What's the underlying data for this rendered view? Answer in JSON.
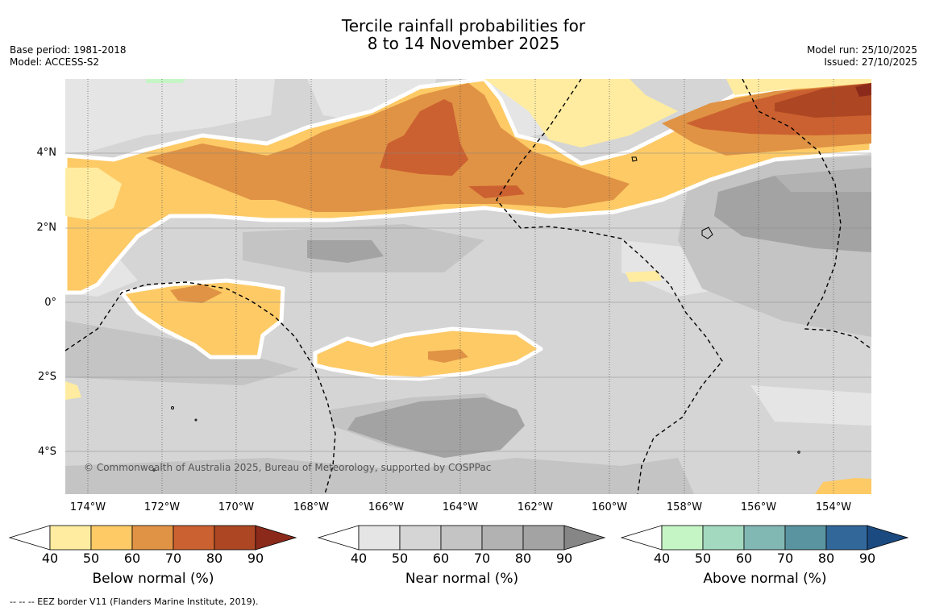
{
  "header": {
    "title_line1": "Tercile rainfall probabilities for",
    "title_line2": "8 to 14 November 2025",
    "base_period": "Base period: 1981-2018",
    "model": "Model: ACCESS-S2",
    "model_run": "Model run: 25/10/2025",
    "issued": "Issued: 27/10/2025"
  },
  "map": {
    "lat_labels": [
      "4°N",
      "2°N",
      "0°",
      "2°S",
      "4°S"
    ],
    "lon_labels": [
      "174°W",
      "172°W",
      "170°W",
      "168°W",
      "166°W",
      "164°W",
      "162°W",
      "160°W",
      "158°W",
      "156°W",
      "154°W"
    ],
    "copyright": "© Commonwealth of Australia 2025, Bureau of Meteorology, supported by COSPPac",
    "footnote": "--  --  -- EEZ border V11 (Flanders Marine Institute, 2019)."
  },
  "colorbars": [
    {
      "label": "Below normal (%)",
      "ticks": [
        "40",
        "50",
        "60",
        "70",
        "80",
        "90"
      ],
      "colors": [
        "#ffeca0",
        "#fdca66",
        "#e09344",
        "#cb6130",
        "#ad4723",
        "#8b2a1b"
      ]
    },
    {
      "label": "Near normal (%)",
      "ticks": [
        "40",
        "50",
        "60",
        "70",
        "80",
        "90"
      ],
      "colors": [
        "#e5e5e5",
        "#d5d5d5",
        "#c4c4c4",
        "#b2b2b2",
        "#a3a3a3",
        "#868686"
      ]
    },
    {
      "label": "Above normal (%)",
      "ticks": [
        "40",
        "50",
        "60",
        "70",
        "80",
        "90"
      ],
      "colors": [
        "#c6f5c5",
        "#a3d9bf",
        "#82b8b3",
        "#5b94a1",
        "#32679a",
        "#1b4a80"
      ]
    }
  ]
}
